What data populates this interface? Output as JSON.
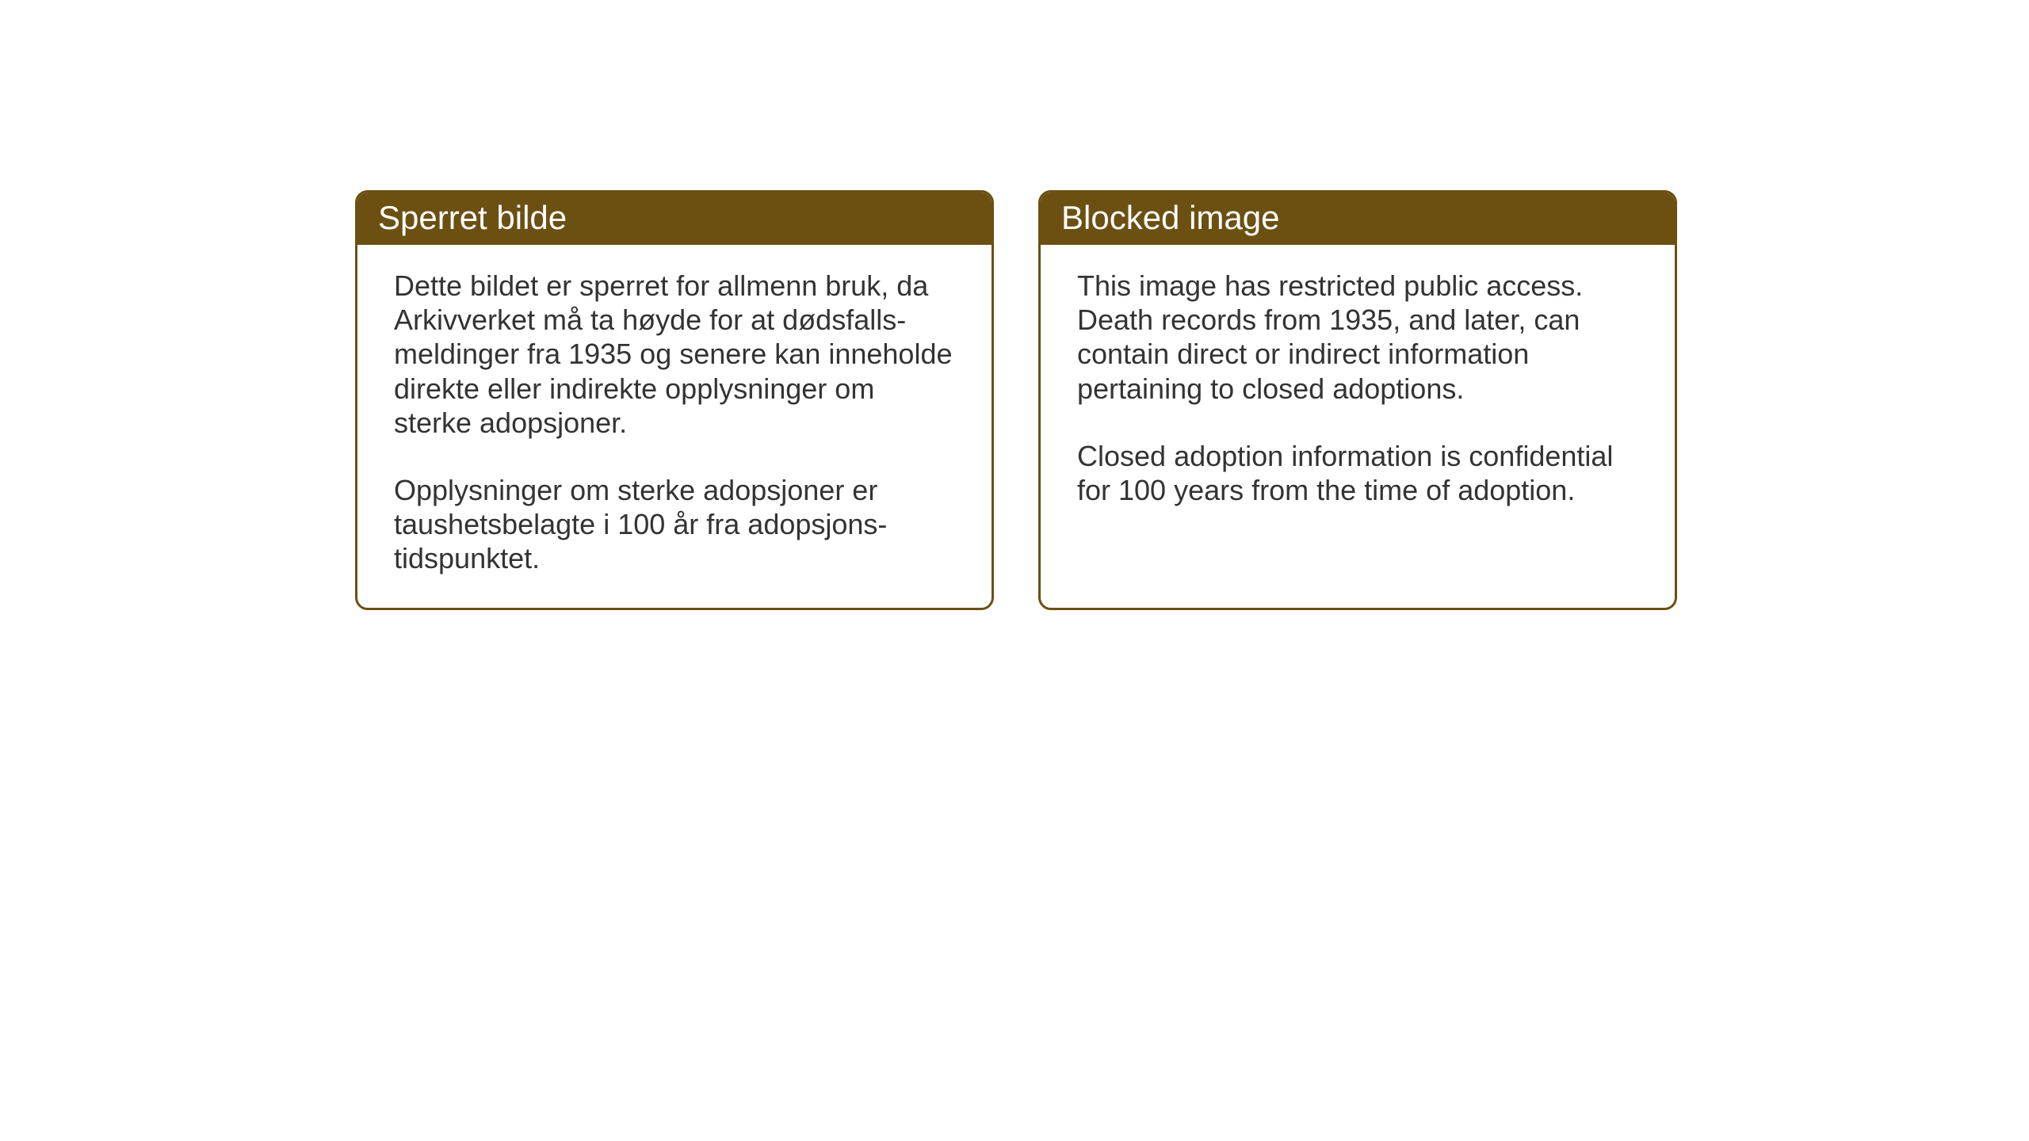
{
  "cards": {
    "norwegian": {
      "title": "Sperret bilde",
      "paragraph1": "Dette bildet er sperret for allmenn bruk, da Arkivverket må ta høyde for at dødsfalls-meldinger fra 1935 og senere kan inneholde direkte eller indirekte opplysninger om sterke adopsjoner.",
      "paragraph2": "Opplysninger om sterke adopsjoner er taushetsbelagte i 100 år fra adopsjons-tidspunktet."
    },
    "english": {
      "title": "Blocked image",
      "paragraph1": "This image has restricted public access. Death records from 1935, and later, can contain direct or indirect information pertaining to closed adoptions.",
      "paragraph2": "Closed adoption information is confidential for 100 years from the time of adoption."
    }
  },
  "styling": {
    "header_background": "#6b5012",
    "header_text_color": "#ffffff",
    "border_color": "#6b5012",
    "body_background": "#ffffff",
    "body_text_color": "#333333",
    "title_fontsize": 42,
    "body_fontsize": 36,
    "border_radius": 16,
    "border_width": 3
  }
}
